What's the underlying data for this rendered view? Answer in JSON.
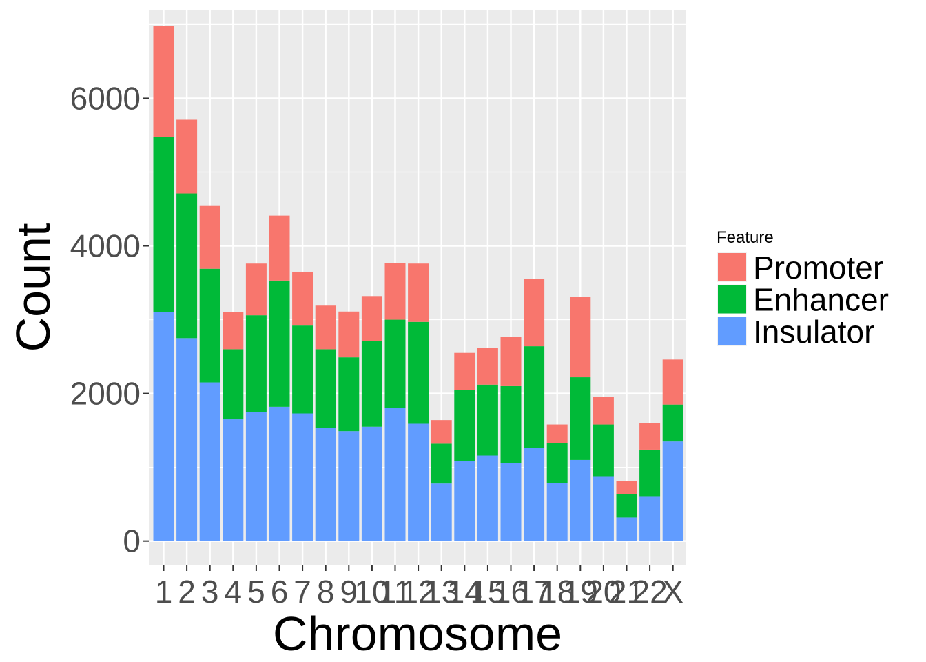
{
  "chart_data": {
    "type": "bar",
    "stacked": true,
    "xlabel": "Chromosome",
    "ylabel": "Count",
    "ylim": [
      -330,
      7200
    ],
    "yticks": [
      0,
      2000,
      4000,
      6000
    ],
    "categories": [
      "1",
      "2",
      "3",
      "4",
      "5",
      "6",
      "7",
      "8",
      "9",
      "10",
      "11",
      "12",
      "13",
      "14",
      "15",
      "16",
      "17",
      "18",
      "19",
      "20",
      "21",
      "22",
      "X"
    ],
    "series": [
      {
        "name": "Insulator",
        "color": "#619CFF",
        "values": [
          3100,
          2750,
          2150,
          1650,
          1750,
          1820,
          1730,
          1530,
          1490,
          1550,
          1800,
          1590,
          780,
          1090,
          1160,
          1060,
          1260,
          790,
          1100,
          880,
          320,
          600,
          1350
        ]
      },
      {
        "name": "Enhancer",
        "color": "#00BA38",
        "values": [
          2380,
          1960,
          1540,
          950,
          1310,
          1710,
          1190,
          1070,
          1000,
          1160,
          1200,
          1380,
          540,
          960,
          960,
          1040,
          1380,
          540,
          1120,
          700,
          320,
          640,
          500
        ]
      },
      {
        "name": "Promoter",
        "color": "#F8766D",
        "values": [
          1500,
          1000,
          850,
          500,
          700,
          880,
          730,
          590,
          620,
          610,
          770,
          790,
          320,
          500,
          500,
          670,
          910,
          250,
          1090,
          370,
          170,
          360,
          610
        ]
      }
    ],
    "legend": {
      "title": "Feature",
      "entries": [
        "Promoter",
        "Enhancer",
        "Insulator"
      ],
      "placement": "right"
    },
    "grid": true,
    "panel_background": "#EBEBEB"
  }
}
